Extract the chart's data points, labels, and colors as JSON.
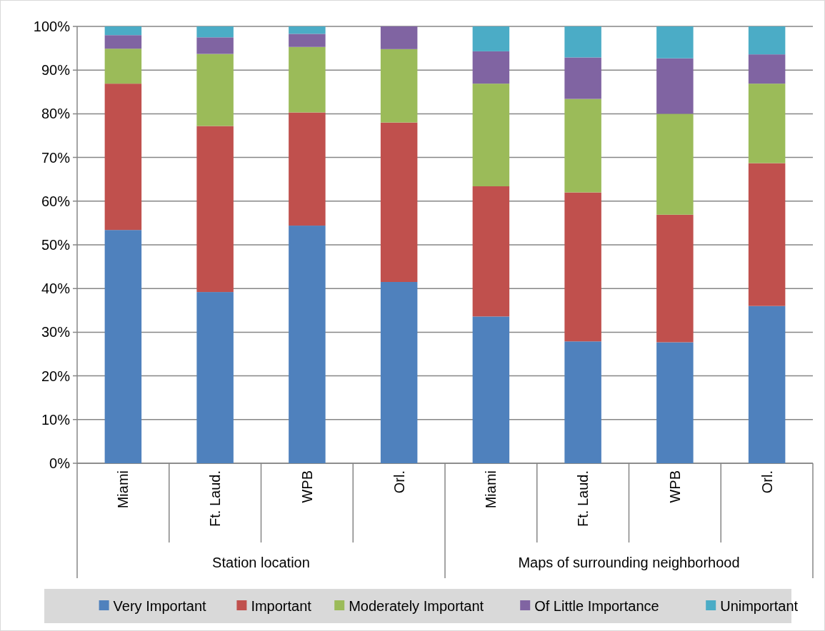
{
  "chart_data": {
    "type": "bar",
    "stacked": true,
    "categories": [
      "Miami",
      "Ft. Laud.",
      "WPB",
      "Orl.",
      "Miami",
      "Ft. Laud.",
      "WPB",
      "Orl."
    ],
    "series": [
      {
        "name": "Very Important",
        "color": "#4f81bd",
        "values": [
          53.4,
          39.2,
          54.4,
          41.5,
          33.6,
          27.9,
          27.7,
          36.0
        ]
      },
      {
        "name": "Important",
        "color": "#c0504d",
        "values": [
          33.5,
          38.0,
          25.9,
          36.5,
          29.8,
          34.1,
          29.2,
          32.7
        ]
      },
      {
        "name": "Moderately Important",
        "color": "#9bbb59",
        "values": [
          8.0,
          16.5,
          15.0,
          16.8,
          23.5,
          21.4,
          23.1,
          18.2
        ]
      },
      {
        "name": "Of Little Importance",
        "color": "#8064a2",
        "values": [
          3.1,
          3.8,
          3.0,
          5.2,
          7.4,
          9.5,
          12.7,
          6.7
        ]
      },
      {
        "name": "Unimportant",
        "color": "#4bacc6",
        "values": [
          2.0,
          2.5,
          1.7,
          0,
          5.7,
          7.1,
          7.3,
          6.4
        ]
      }
    ],
    "ylim": [
      0,
      100
    ],
    "yticks": [
      {
        "value": 0,
        "label": "0%"
      },
      {
        "value": 10,
        "label": "10%"
      },
      {
        "value": 20,
        "label": "20%"
      },
      {
        "value": 30,
        "label": "30%"
      },
      {
        "value": 40,
        "label": "40%"
      },
      {
        "value": 50,
        "label": "50%"
      },
      {
        "value": 60,
        "label": "60%"
      },
      {
        "value": 70,
        "label": "70%"
      },
      {
        "value": 80,
        "label": "80%"
      },
      {
        "value": 90,
        "label": "90%"
      },
      {
        "value": 100,
        "label": "100%"
      }
    ],
    "grid": "y",
    "legend": "bottom",
    "annotations": [
      "Station location",
      "Maps of surrounding neighborhood"
    ]
  }
}
